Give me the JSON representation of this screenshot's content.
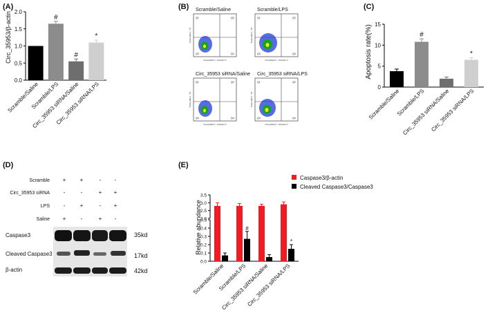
{
  "panels": {
    "a": "(A)",
    "b": "(B)",
    "c": "(C)",
    "d": "(D)",
    "e": "(E)"
  },
  "colors": {
    "black": "#000000",
    "dark_gray": "#8c8c8c",
    "mid_gray": "#6e6e6e",
    "light_gray": "#cfcfcf",
    "red": "#ee1c25",
    "flow_blue": "#1f3bd6"
  },
  "chart_data": [
    {
      "id": "A",
      "type": "bar",
      "ylabel": "Circ_35953/β-actin",
      "ylim": [
        0,
        2.0
      ],
      "yticks": [
        "0.0",
        "0.5",
        "1.0",
        "1.5",
        "2.0"
      ],
      "categories": [
        "Scramble/Saline",
        "Scramble/LPS",
        "Circ_35953 siRNA/Saline",
        "Circ_35953 siRNA/LPS"
      ],
      "values": [
        1.0,
        1.65,
        0.55,
        1.1
      ],
      "errors": [
        0,
        0.07,
        0.07,
        0.07
      ],
      "annotations": [
        "",
        "#",
        "#",
        "*"
      ]
    },
    {
      "id": "C",
      "type": "bar",
      "ylabel": "Apoptosis rate(%)",
      "ylim": [
        0,
        15
      ],
      "yticks": [
        "0",
        "5",
        "10",
        "15"
      ],
      "categories": [
        "Scramble/Saline",
        "Scramble/LPS",
        "Circ_35953 siRNA/Saline",
        "Circ_35953 siRNA/LPS"
      ],
      "values": [
        3.8,
        10.8,
        2.0,
        6.5
      ],
      "errors": [
        0.5,
        0.7,
        0.4,
        0.5
      ],
      "annotations": [
        "",
        "#",
        "",
        "*"
      ]
    },
    {
      "id": "E",
      "type": "bar",
      "ylabel": "Relative abundance",
      "ylim": [
        0,
        3.5
      ],
      "yticks": [
        "0.0",
        "0.1",
        "0.2",
        "0.3",
        "0.4",
        "0.5",
        "2.0",
        "2.5",
        "3.0",
        "3.5"
      ],
      "categories": [
        "Scramble/Saline",
        "Scramble/LPS",
        "Circ_35953 siRNA/Saline",
        "Circ_35953 siRNA/LPS"
      ],
      "series": [
        {
          "name": "Caspase3/β-actin",
          "values": [
            2.8,
            2.8,
            2.8,
            2.9
          ],
          "errors": [
            0.2,
            0.15,
            0.1,
            0.15
          ]
        },
        {
          "name": "Cleaved Caspase3/Caspase3",
          "values": [
            0.07,
            0.27,
            0.05,
            0.15
          ],
          "errors": [
            0.03,
            0.09,
            0.03,
            0.05
          ]
        }
      ],
      "annotations": [
        "",
        "#",
        "",
        "*"
      ],
      "legend": "top-right"
    }
  ],
  "flow": {
    "titles": [
      "Scramble/Saline",
      "Scramble/LPS",
      "Circ_35953 siRNA/Saline",
      "Circ_35953 siRNA/LPS"
    ],
    "xlabel": "Comp-Ref-2 :: Annexin V",
    "ylabel": "Comp-Ref-1 :: PI",
    "quadrants": [
      [
        "Q1",
        "Q2",
        "Q3",
        "Q4"
      ],
      [
        "Q1",
        "Q2",
        "Q3",
        "Q4"
      ],
      [
        "Q1",
        "Q2",
        "Q3",
        "Q4"
      ],
      [
        "Q1",
        "Q2",
        "Q3",
        "Q4"
      ]
    ]
  },
  "western": {
    "conditions": [
      "Scramble",
      "Circ_35953 siRNA",
      "LPS",
      "Saline"
    ],
    "signs": [
      [
        "+",
        "+",
        "-",
        "-"
      ],
      [
        "-",
        "-",
        "+",
        "+"
      ],
      [
        "-",
        "+",
        "-",
        "+"
      ],
      [
        "+",
        "-",
        "+",
        "-"
      ]
    ],
    "bands": [
      "Caspase3",
      "Cleaved Caspase3",
      "β-actin"
    ],
    "sizes": [
      "35kd",
      "17kd",
      "42kd"
    ]
  }
}
